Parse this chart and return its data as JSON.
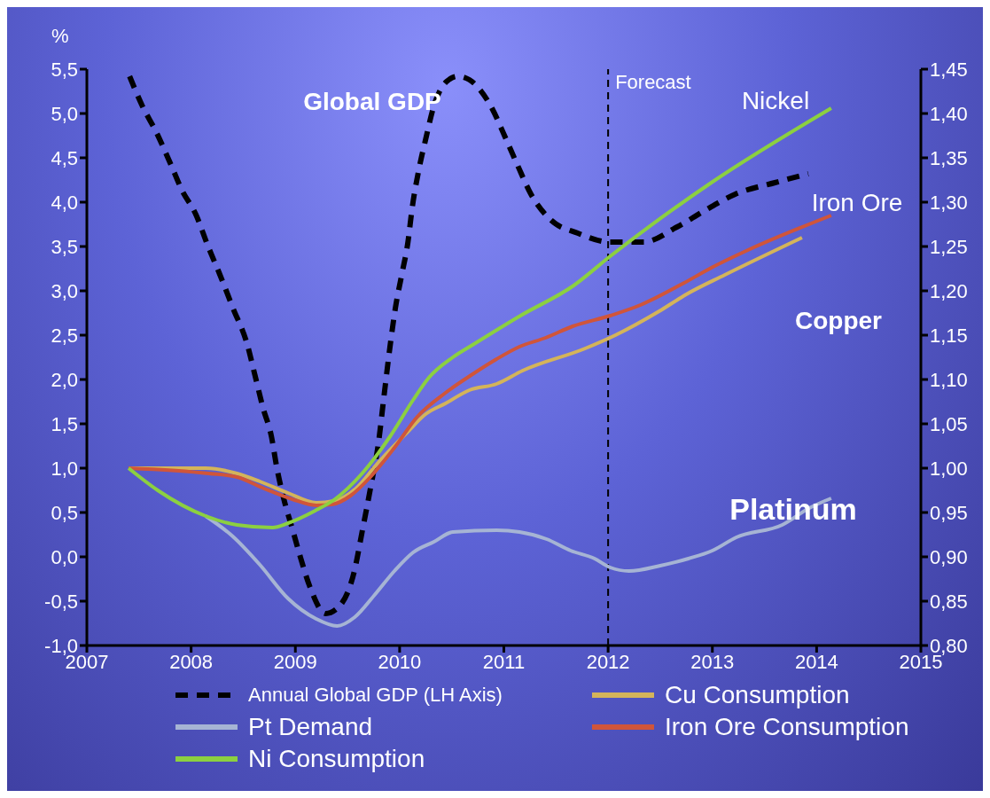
{
  "chart_data": {
    "type": "line",
    "ylabel": "%",
    "xlim": [
      2007,
      2015
    ],
    "xticks": [
      2007,
      2008,
      2009,
      2010,
      2011,
      2012,
      2013,
      2014,
      2015
    ],
    "ylim": [
      -1,
      5.5
    ],
    "yticks": [
      {
        "value": -1,
        "label": "-1,0"
      },
      {
        "value": -0.5,
        "label": "-0,5"
      },
      {
        "value": 0,
        "label": "0,0"
      },
      {
        "value": 0.5,
        "label": "0,5"
      },
      {
        "value": 1,
        "label": "1,0"
      },
      {
        "value": 1.5,
        "label": "1,5"
      },
      {
        "value": 2,
        "label": "2,0"
      },
      {
        "value": 2.5,
        "label": "2,5"
      },
      {
        "value": 3,
        "label": "3,0"
      },
      {
        "value": 3.5,
        "label": "3,5"
      },
      {
        "value": 4,
        "label": "4,0"
      },
      {
        "value": 4.5,
        "label": "4,5"
      },
      {
        "value": 5,
        "label": "5,0"
      },
      {
        "value": 5.5,
        "label": "5,5"
      }
    ],
    "y2lim": [
      0.8,
      1.45
    ],
    "y2ticks": [
      {
        "value": 0.8,
        "label": "0,80"
      },
      {
        "value": 0.85,
        "label": "0,85"
      },
      {
        "value": 0.9,
        "label": "0,90"
      },
      {
        "value": 0.95,
        "label": "0,95"
      },
      {
        "value": 1,
        "label": "1,00"
      },
      {
        "value": 1.05,
        "label": "1,05"
      },
      {
        "value": 1.1,
        "label": "1,10"
      },
      {
        "value": 1.15,
        "label": "1,15"
      },
      {
        "value": 1.2,
        "label": "1,20"
      },
      {
        "value": 1.25,
        "label": "1,25"
      },
      {
        "value": 1.3,
        "label": "1,30"
      },
      {
        "value": 1.35,
        "label": "1,35"
      },
      {
        "value": 1.4,
        "label": "1,40"
      },
      {
        "value": 1.45,
        "label": "1,45"
      }
    ],
    "grid": false,
    "legend": "bottom",
    "marker": "none",
    "series": [
      {
        "name": "Annual Global GDP (LH Axis)",
        "color": "#000000",
        "line_style": "dashed",
        "x": [
          2007.41,
          2007.53,
          2007.67,
          2007.8,
          2007.91,
          2008.05,
          2008.16,
          2008.27,
          2008.4,
          2008.54,
          2008.61,
          2008.69,
          2008.77,
          2008.82,
          2008.89,
          2008.98,
          2009.04,
          2009.14,
          2009.29,
          2009.42,
          2009.57,
          2009.64,
          2009.72,
          2009.8,
          2009.85,
          2009.91,
          2009.96,
          2010.02,
          2010.08,
          2010.12,
          2010.18,
          2010.25,
          2010.33,
          2010.45,
          2010.56,
          2010.67,
          2010.89,
          2011.01,
          2011.13,
          2011.26,
          2011.45,
          2011.71,
          2012.02,
          2012.34,
          2012.66,
          2012.92,
          2013.22,
          2013.6,
          2013.92
        ],
        "values": [
          5.42,
          5.09,
          4.78,
          4.44,
          4.14,
          3.85,
          3.51,
          3.2,
          2.81,
          2.39,
          2.06,
          1.68,
          1.36,
          1.02,
          0.65,
          0.28,
          0.03,
          -0.34,
          -0.64,
          -0.56,
          -0.14,
          0.28,
          0.77,
          1.31,
          1.81,
          2.39,
          2.81,
          3.18,
          3.55,
          3.93,
          4.34,
          4.71,
          5.09,
          5.36,
          5.42,
          5.38,
          5.05,
          4.74,
          4.42,
          4.09,
          3.8,
          3.65,
          3.55,
          3.55,
          3.72,
          3.9,
          4.09,
          4.22,
          4.32
        ]
      },
      {
        "name": "Cu Consumption",
        "color": "#d4b45a",
        "axis": "y2",
        "x": [
          2007.4,
          2008.14,
          2008.44,
          2008.66,
          2008.93,
          2009.2,
          2009.37,
          2009.58,
          2009.8,
          2010.07,
          2010.25,
          2010.44,
          2010.67,
          2010.93,
          2011.18,
          2011.78,
          2012.07,
          2012.49,
          2012.75,
          2013.12,
          2013.86
        ],
        "values": [
          1.0,
          1.0,
          0.994,
          0.985,
          0.972,
          0.961,
          0.963,
          0.977,
          1.007,
          1.04,
          1.061,
          1.073,
          1.088,
          1.095,
          1.11,
          1.135,
          1.15,
          1.177,
          1.196,
          1.218,
          1.26
        ]
      },
      {
        "name": "Pt Demand",
        "color": "#a6b4d4",
        "axis": "y2",
        "x": [
          2008.14,
          2008.4,
          2008.66,
          2008.93,
          2009.2,
          2009.4,
          2009.57,
          2009.76,
          2009.95,
          2010.13,
          2010.33,
          2010.51,
          2010.93,
          2011.15,
          2011.41,
          2011.64,
          2011.87,
          2012.02,
          2012.2,
          2012.5,
          2012.77,
          2013.0,
          2013.23,
          2013.67,
          2013.93,
          2014.14
        ],
        "values": [
          0.946,
          0.923,
          0.891,
          0.853,
          0.83,
          0.822,
          0.832,
          0.857,
          0.884,
          0.905,
          0.917,
          0.928,
          0.93,
          0.928,
          0.92,
          0.907,
          0.898,
          0.888,
          0.884,
          0.89,
          0.898,
          0.907,
          0.922,
          0.936,
          0.955,
          0.966
        ]
      },
      {
        "name": "Iron Ore Consumption",
        "color": "#d0553a",
        "axis": "y2",
        "x": [
          2007.4,
          2008.17,
          2008.44,
          2008.7,
          2008.97,
          2009.2,
          2009.35,
          2009.53,
          2009.72,
          2009.95,
          2010.17,
          2010.44,
          2010.7,
          2010.93,
          2011.15,
          2011.4,
          2011.66,
          2012.02,
          2012.31,
          2012.73,
          2012.99,
          2013.36,
          2014.14
        ],
        "values": [
          1.0,
          0.994,
          0.99,
          0.977,
          0.965,
          0.958,
          0.959,
          0.969,
          0.99,
          1.023,
          1.058,
          1.085,
          1.106,
          1.123,
          1.137,
          1.147,
          1.16,
          1.172,
          1.184,
          1.209,
          1.226,
          1.247,
          1.285
        ]
      },
      {
        "name": "Ni Consumption",
        "color": "#8cd040",
        "x": [
          2007.4,
          2007.68,
          2008.14,
          2008.44,
          2008.78,
          2008.93,
          2009.19,
          2009.38,
          2009.64,
          2009.91,
          2010.13,
          2010.28,
          2010.51,
          2010.7,
          2011.16,
          2011.67,
          2012.02,
          2012.99,
          2014.14
        ],
        "axis": "y2",
        "values": [
          1.0,
          0.975,
          0.946,
          0.936,
          0.933,
          0.938,
          0.952,
          0.965,
          0.994,
          1.036,
          1.077,
          1.102,
          1.125,
          1.139,
          1.172,
          1.206,
          1.239,
          1.322,
          1.406
        ]
      }
    ],
    "ref_lines": [
      {
        "axis": "x",
        "value": 2012,
        "label": "Forecast",
        "line_style": "dashed",
        "color": "#000000"
      }
    ],
    "annotations": [
      "Global GDP",
      "Nickel",
      "Iron Ore",
      "Copper",
      "Platinum"
    ]
  }
}
